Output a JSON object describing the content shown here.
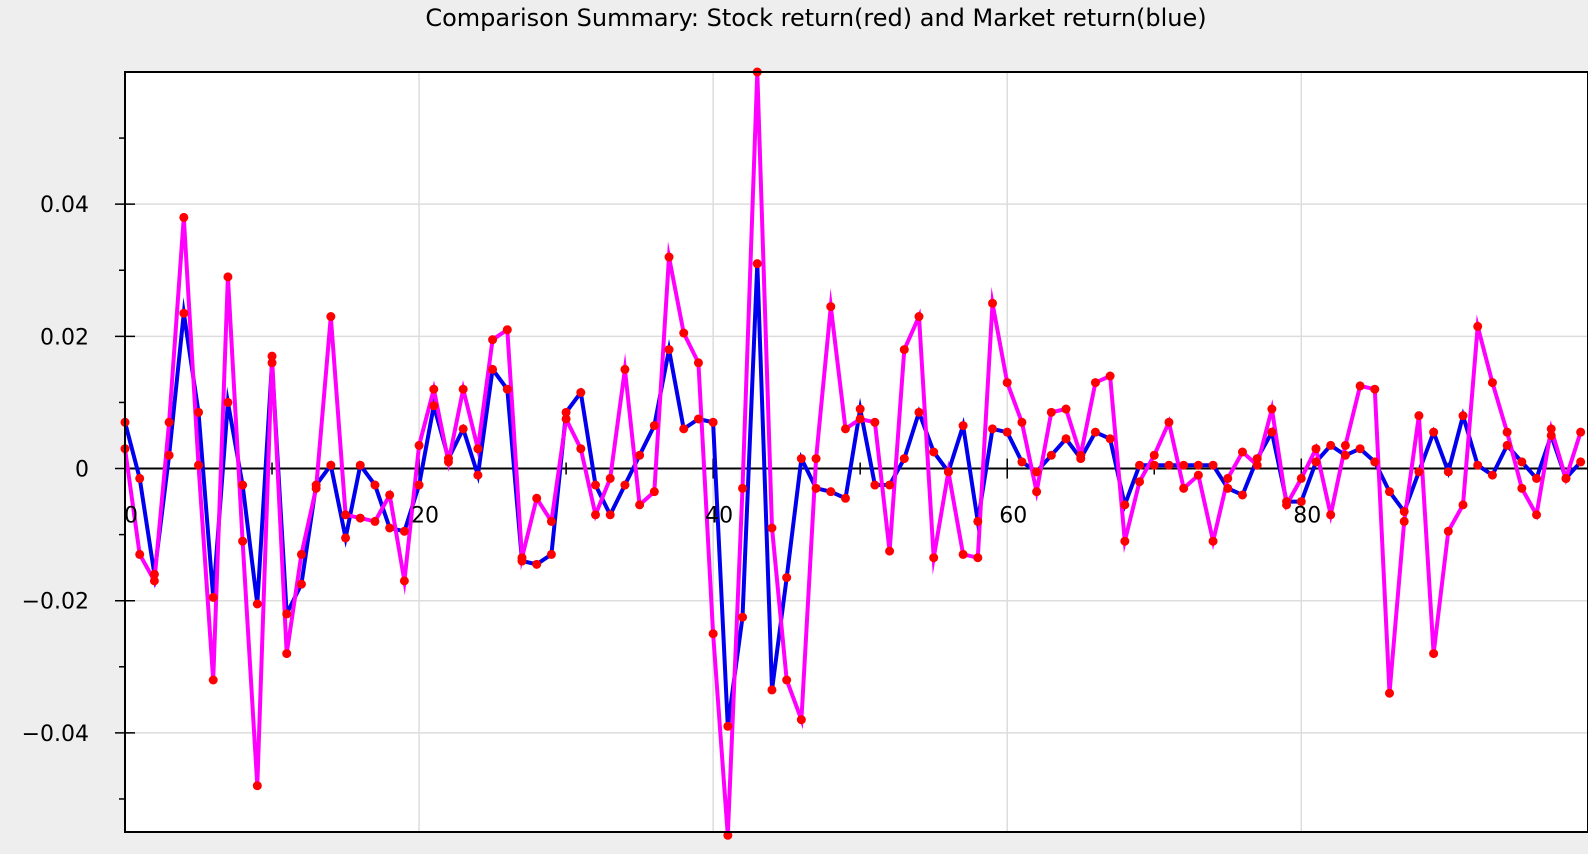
{
  "chart_data": {
    "type": "line",
    "title": "Comparison Summary: Stock return(red) and Market return(blue)",
    "xlabel": "",
    "ylabel": "",
    "xlim": [
      0,
      99.5
    ],
    "ylim": [
      -0.055,
      0.06
    ],
    "grid": true,
    "legend": "none",
    "x_ticks": [
      0,
      20,
      40,
      60,
      80
    ],
    "x_tick_labels": [
      "0",
      "20",
      "40",
      "60",
      "80"
    ],
    "x_minor_ticks": [
      10,
      30,
      50,
      70,
      90
    ],
    "y_ticks": [
      0.04,
      0.02,
      0,
      -0.02,
      -0.04
    ],
    "y_tick_labels": [
      "0.04",
      "0.02",
      "0",
      "−0.02",
      "−0.04"
    ],
    "y_minor_ticks": [
      0.05,
      0.03,
      0.01,
      -0.01,
      -0.03,
      -0.05
    ],
    "colors": {
      "background": "#eeeeee",
      "plot_background": "#ffffff",
      "grid": "#dddddd",
      "axis": "#000000",
      "stock_line": "#ff00ff",
      "market_line": "#0000ee",
      "markers": "#ff0000"
    },
    "x": [
      0,
      1,
      2,
      3,
      4,
      5,
      6,
      7,
      8,
      9,
      10,
      11,
      12,
      13,
      14,
      15,
      16,
      17,
      18,
      19,
      20,
      21,
      22,
      23,
      24,
      25,
      26,
      27,
      28,
      29,
      30,
      31,
      32,
      33,
      34,
      35,
      36,
      37,
      38,
      39,
      40,
      41,
      42,
      43,
      44,
      45,
      46,
      47,
      48,
      49,
      50,
      51,
      52,
      53,
      54,
      55,
      56,
      57,
      58,
      59,
      60,
      61,
      62,
      63,
      64,
      65,
      66,
      67,
      68,
      69,
      70,
      71,
      72,
      73,
      74,
      75,
      76,
      77,
      78,
      79,
      80,
      81,
      82,
      83,
      84,
      85,
      86,
      87,
      88,
      89,
      90,
      91,
      92,
      93,
      94,
      95,
      96,
      97,
      98,
      99
    ],
    "series": [
      {
        "name": "Stock return",
        "color": "#ff00ff",
        "values": [
          0.003,
          -0.013,
          -0.017,
          0.007,
          0.038,
          0.0005,
          -0.032,
          0.029,
          -0.011,
          -0.048,
          0.017,
          -0.028,
          -0.013,
          -0.003,
          0.023,
          -0.007,
          -0.0075,
          -0.008,
          -0.004,
          -0.017,
          0.0035,
          0.012,
          0.001,
          0.012,
          0.003,
          0.0195,
          0.021,
          -0.0135,
          -0.0045,
          -0.008,
          0.0075,
          0.003,
          -0.007,
          -0.0015,
          0.015,
          -0.0055,
          -0.0035,
          0.032,
          0.0205,
          0.016,
          -0.025,
          -0.0555,
          -0.003,
          0.06,
          -0.009,
          -0.032,
          -0.038,
          0.0015,
          0.0245,
          0.006,
          0.0075,
          0.007,
          -0.0125,
          0.018,
          0.023,
          -0.0135,
          -0.0005,
          -0.013,
          -0.0135,
          0.025,
          0.013,
          0.007,
          -0.0035,
          0.0085,
          0.009,
          0.002,
          0.013,
          0.014,
          -0.011,
          -0.002,
          0.002,
          0.007,
          -0.003,
          -0.001,
          -0.011,
          -0.0015,
          0.0025,
          0.0005,
          0.009,
          -0.0055,
          -0.0015,
          0.003,
          -0.007,
          0.0035,
          0.0125,
          0.012,
          -0.034,
          -0.008,
          0.008,
          -0.028,
          -0.0095,
          -0.0055,
          0.0215,
          0.013,
          0.0055,
          -0.003,
          -0.007,
          0.006,
          -0.0015,
          0.0055
        ]
      },
      {
        "name": "Market return",
        "color": "#0000ee",
        "values": [
          0.007,
          -0.0015,
          -0.016,
          0.002,
          0.0235,
          0.0085,
          -0.0195,
          0.01,
          -0.0025,
          -0.0205,
          0.016,
          -0.022,
          -0.0175,
          -0.0025,
          0.0005,
          -0.0105,
          0.0005,
          -0.0025,
          -0.009,
          -0.0095,
          -0.0025,
          0.0095,
          0.0015,
          0.006,
          -0.001,
          0.015,
          0.012,
          -0.014,
          -0.0145,
          -0.013,
          0.0085,
          0.0115,
          -0.0025,
          -0.007,
          -0.0025,
          0.002,
          0.0065,
          0.018,
          0.006,
          0.0075,
          0.007,
          -0.039,
          -0.0225,
          0.031,
          -0.0335,
          -0.0165,
          0.0015,
          -0.003,
          -0.0035,
          -0.0045,
          0.009,
          -0.0025,
          -0.0025,
          0.0015,
          0.0085,
          0.0025,
          -0.0005,
          0.0065,
          -0.008,
          0.006,
          0.0055,
          0.001,
          -0.0005,
          0.002,
          0.0045,
          0.0015,
          0.0055,
          0.0045,
          -0.0055,
          0.0005,
          0.0005,
          0.0005,
          0.0005,
          0.0005,
          0.0005,
          -0.003,
          -0.004,
          0.0015,
          0.0055,
          -0.005,
          -0.005,
          0.001,
          0.0035,
          0.002,
          0.003,
          0.001,
          -0.0035,
          -0.0065,
          -0.0005,
          0.0055,
          -0.0005,
          0.008,
          0.0005,
          -0.001,
          0.0035,
          0.001,
          -0.0015,
          0.005,
          -0.0015,
          0.001
        ]
      }
    ]
  }
}
